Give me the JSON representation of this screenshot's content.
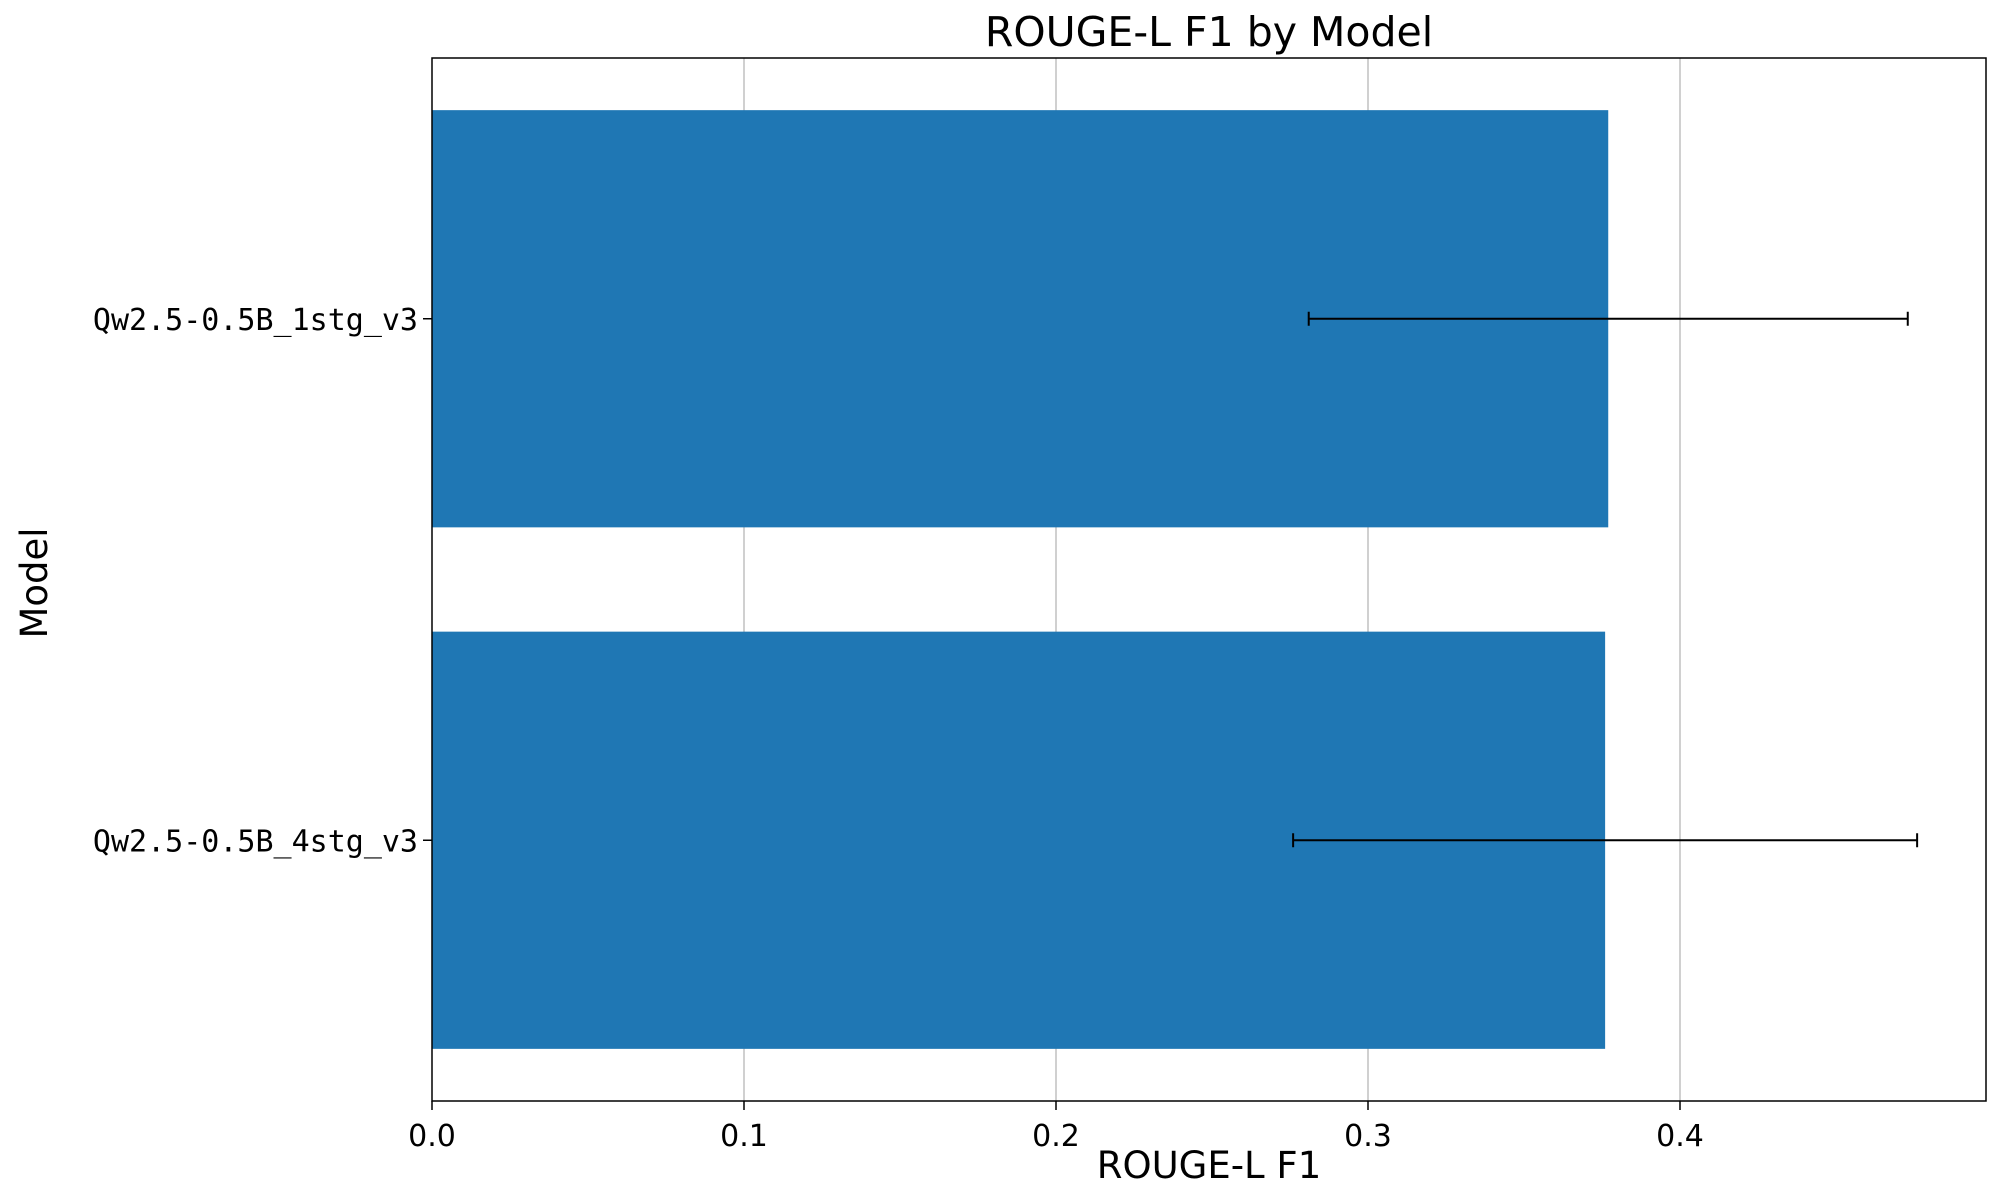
{
  "chart_data": {
    "type": "bar",
    "orientation": "horizontal",
    "title": "ROUGE-L F1 by Model",
    "xlabel": "ROUGE-L F1",
    "ylabel": "Model",
    "categories": [
      "Qw2.5-0.5B_1stg_v3",
      "Qw2.5-0.5B_4stg_v3"
    ],
    "values": [
      0.377,
      0.376
    ],
    "errors": [
      0.096,
      0.1
    ],
    "xlim": [
      0,
      0.5
    ],
    "xticks": [
      0.0,
      0.1,
      0.2,
      0.3,
      0.4
    ],
    "xtick_labels": [
      "0.0",
      "0.1",
      "0.2",
      "0.3",
      "0.4"
    ],
    "grid": "x",
    "bar_color": "#1f77b4",
    "error_color": "#000000",
    "grid_color": "#b0b0b0"
  }
}
